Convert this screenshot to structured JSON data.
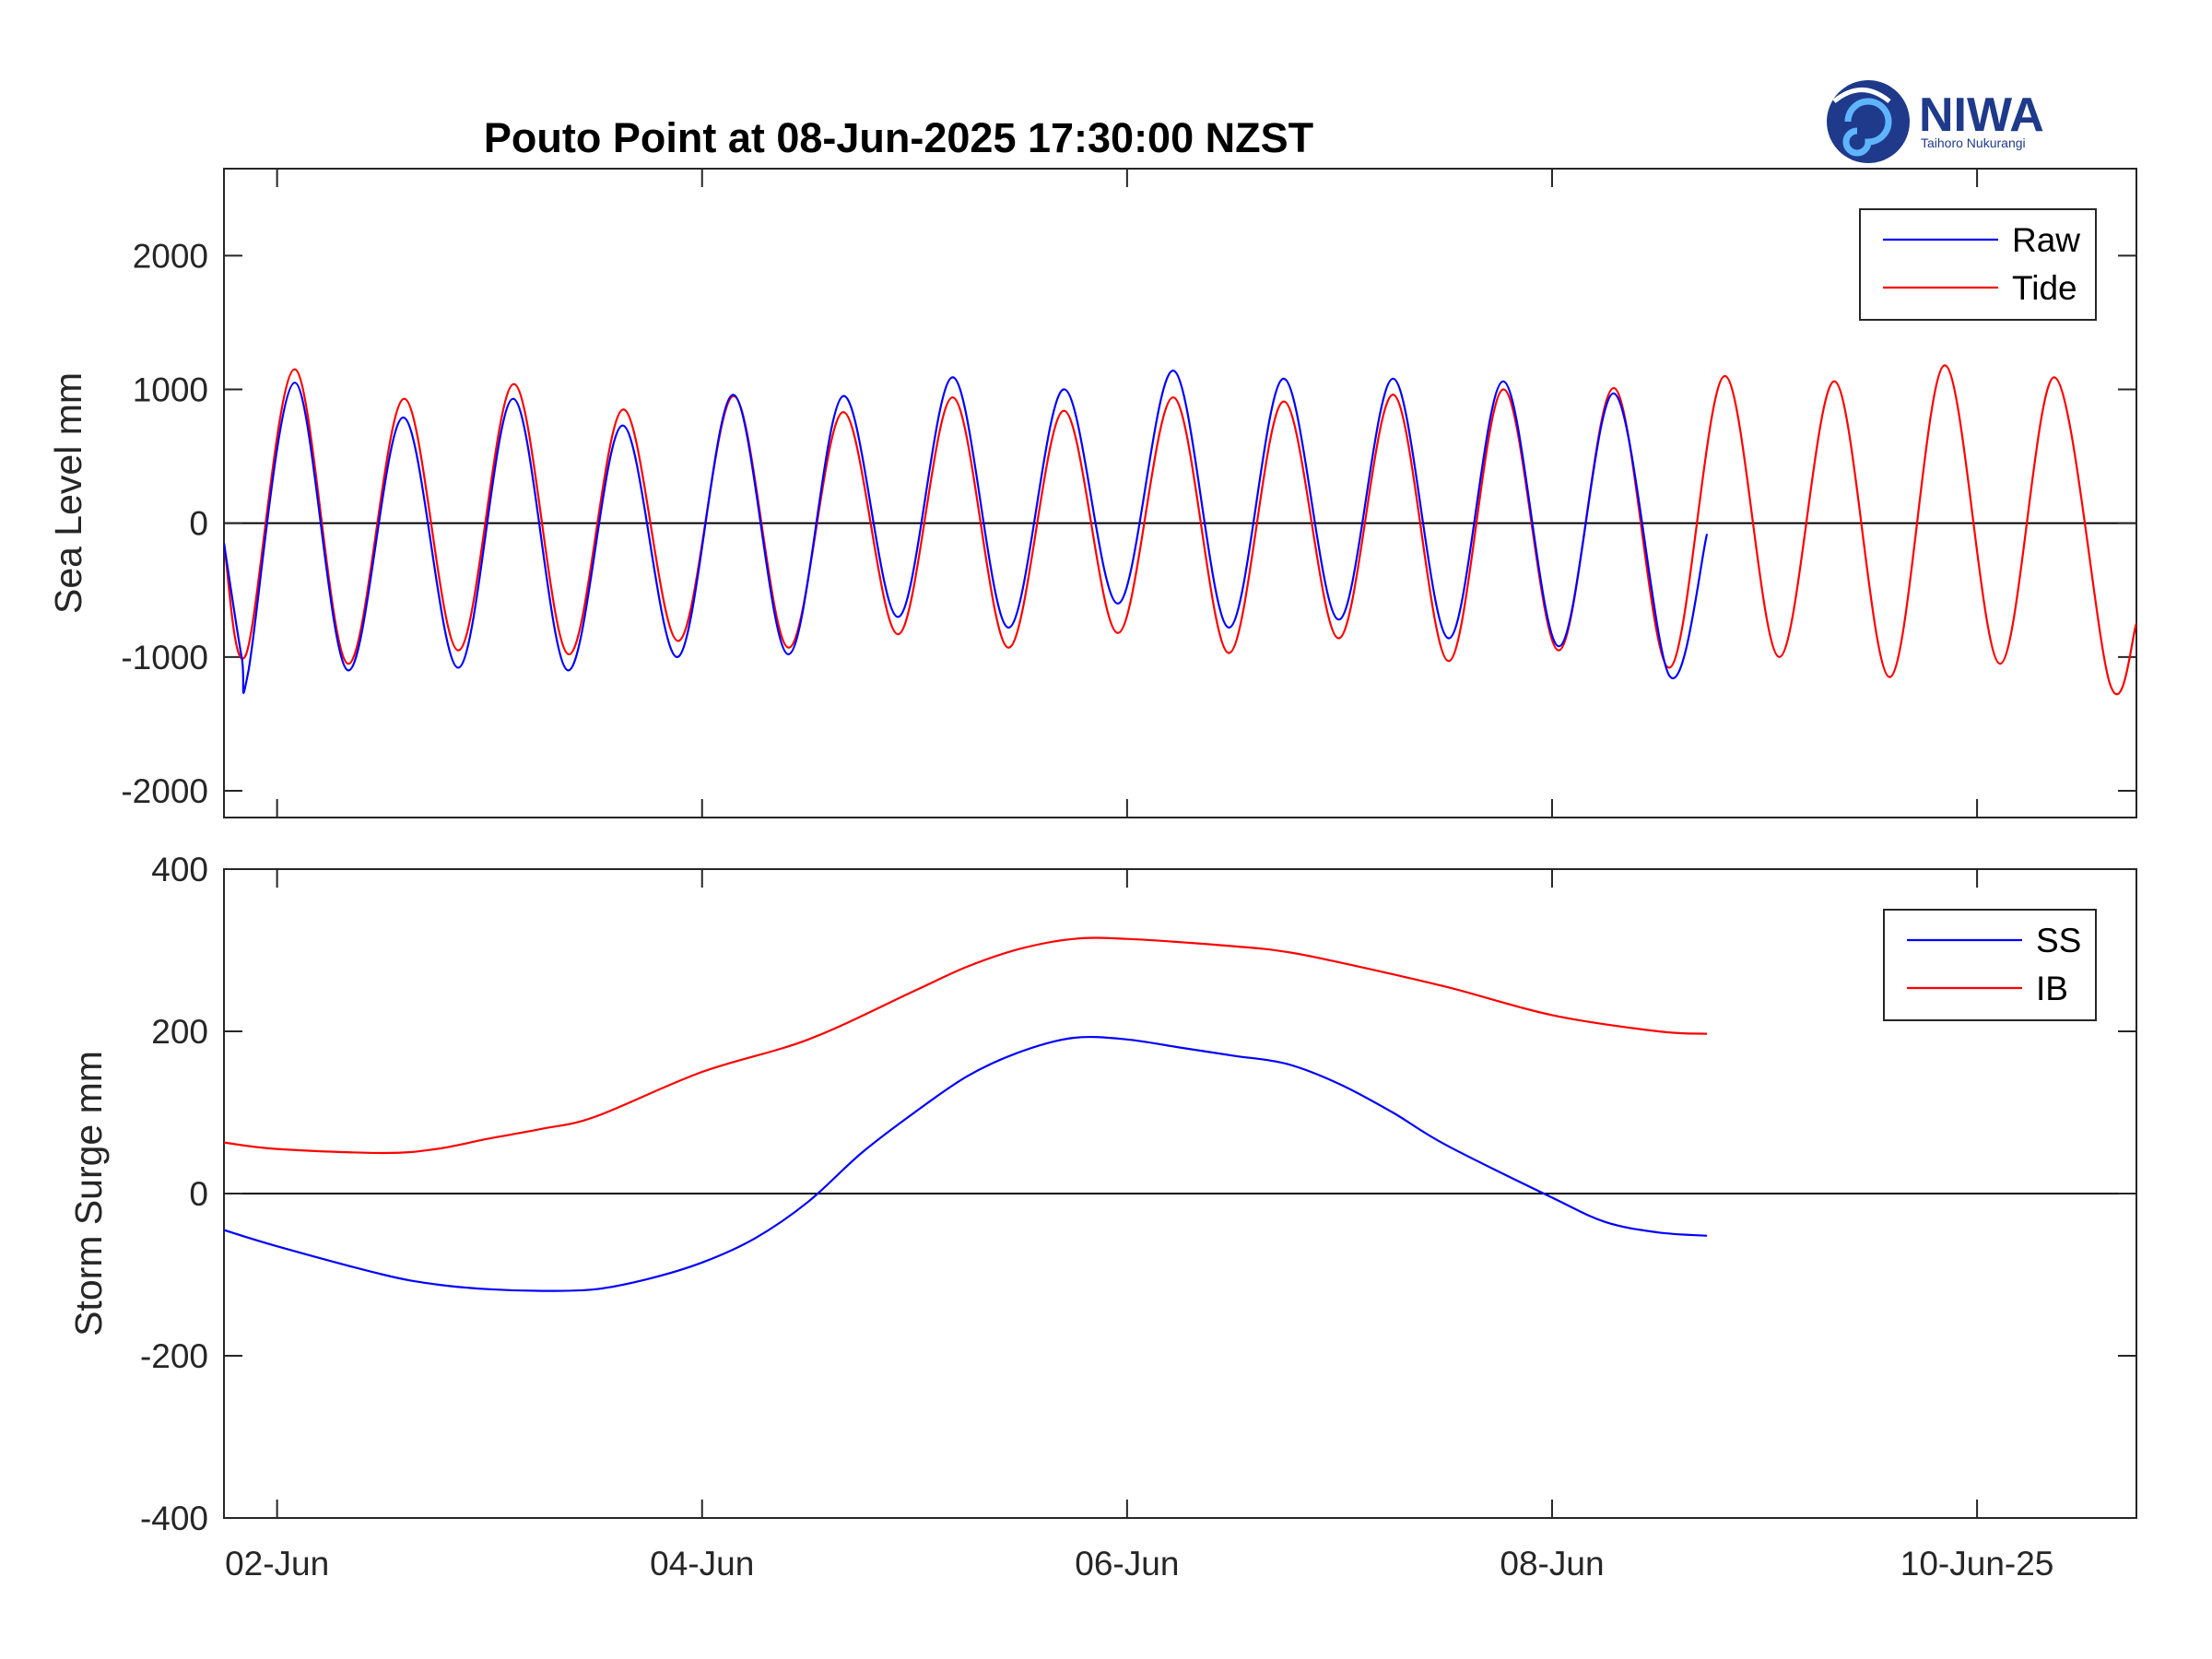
{
  "title": "Pouto Point at 08-Jun-2025 17:30:00 NZST",
  "logo": {
    "name": "NIWA",
    "subtitle": "Taihoro Nukurangi"
  },
  "colors": {
    "raw": "#0000ff",
    "tide": "#ff0000",
    "ss": "#0000ff",
    "ib": "#ff0000",
    "axis": "#262626",
    "zero": "#000000"
  },
  "x_axis": {
    "start": "2025-06-01T18:00",
    "end": "2025-06-10T18:00",
    "ticks": [
      {
        "date": "2025-06-02T00:00",
        "label": "02-Jun"
      },
      {
        "date": "2025-06-04T00:00",
        "label": "04-Jun"
      },
      {
        "date": "2025-06-06T00:00",
        "label": "06-Jun"
      },
      {
        "date": "2025-06-08T00:00",
        "label": "08-Jun"
      },
      {
        "date": "2025-06-10T00:00",
        "label": "10-Jun-25"
      }
    ]
  },
  "chart_data": [
    {
      "type": "line",
      "ylabel": "Sea Level mm",
      "ylim": [
        -2200,
        2650
      ],
      "yticks": [
        "2000",
        "1000",
        "0",
        "-1000",
        "-2000"
      ],
      "yticks_values": [
        2000,
        1000,
        0,
        -1000,
        -2000
      ],
      "legend": "top-right",
      "zero_line": true,
      "series": [
        {
          "name": "Raw",
          "points": [
            [
              "2025-06-01T18:00",
              -150
            ],
            [
              "2025-06-01T20:00",
              -1000
            ],
            [
              "2025-06-01T20:45",
              -1110
            ],
            [
              "2025-06-02T02:00",
              1050
            ],
            [
              "2025-06-02T08:00",
              -1100
            ],
            [
              "2025-06-02T14:15",
              790
            ],
            [
              "2025-06-02T20:30",
              -1080
            ],
            [
              "2025-06-03T02:40",
              930
            ],
            [
              "2025-06-03T08:50",
              -1100
            ],
            [
              "2025-06-03T15:00",
              730
            ],
            [
              "2025-06-03T21:15",
              -1000
            ],
            [
              "2025-06-04T03:30",
              960
            ],
            [
              "2025-06-04T09:45",
              -980
            ],
            [
              "2025-06-04T15:55",
              950
            ],
            [
              "2025-06-04T22:10",
              -700
            ],
            [
              "2025-06-05T04:20",
              1090
            ],
            [
              "2025-06-05T10:35",
              -780
            ],
            [
              "2025-06-05T16:50",
              1000
            ],
            [
              "2025-06-05T23:00",
              -600
            ],
            [
              "2025-06-06T05:15",
              1140
            ],
            [
              "2025-06-06T11:30",
              -780
            ],
            [
              "2025-06-06T17:40",
              1080
            ],
            [
              "2025-06-06T23:55",
              -720
            ],
            [
              "2025-06-07T06:05",
              1080
            ],
            [
              "2025-06-07T12:20",
              -860
            ],
            [
              "2025-06-07T18:30",
              1060
            ],
            [
              "2025-06-08T00:45",
              -920
            ],
            [
              "2025-06-08T07:00",
              970
            ],
            [
              "2025-06-08T13:15",
              -1140
            ],
            [
              "2025-06-08T17:30",
              -80
            ]
          ]
        },
        {
          "name": "Tide",
          "points": [
            [
              "2025-06-01T18:00",
              -150
            ],
            [
              "2025-06-01T20:30",
              -980
            ],
            [
              "2025-06-02T02:00",
              1150
            ],
            [
              "2025-06-02T08:00",
              -1050
            ],
            [
              "2025-06-02T14:20",
              930
            ],
            [
              "2025-06-02T20:30",
              -950
            ],
            [
              "2025-06-03T02:45",
              1040
            ],
            [
              "2025-06-03T08:55",
              -980
            ],
            [
              "2025-06-03T15:05",
              850
            ],
            [
              "2025-06-03T21:20",
              -880
            ],
            [
              "2025-06-04T03:35",
              950
            ],
            [
              "2025-06-04T09:45",
              -930
            ],
            [
              "2025-06-04T15:55",
              830
            ],
            [
              "2025-06-04T22:10",
              -830
            ],
            [
              "2025-06-05T04:20",
              940
            ],
            [
              "2025-06-05T10:35",
              -930
            ],
            [
              "2025-06-05T16:50",
              840
            ],
            [
              "2025-06-05T23:00",
              -820
            ],
            [
              "2025-06-06T05:15",
              940
            ],
            [
              "2025-06-06T11:30",
              -970
            ],
            [
              "2025-06-06T17:40",
              910
            ],
            [
              "2025-06-06T23:55",
              -860
            ],
            [
              "2025-06-07T06:05",
              960
            ],
            [
              "2025-06-07T12:20",
              -1030
            ],
            [
              "2025-06-07T18:30",
              1000
            ],
            [
              "2025-06-08T00:45",
              -950
            ],
            [
              "2025-06-08T07:00",
              1010
            ],
            [
              "2025-06-08T13:15",
              -1080
            ],
            [
              "2025-06-08T19:30",
              1100
            ],
            [
              "2025-06-09T01:40",
              -1000
            ],
            [
              "2025-06-09T07:55",
              1060
            ],
            [
              "2025-06-09T14:10",
              -1150
            ],
            [
              "2025-06-09T20:20",
              1180
            ],
            [
              "2025-06-10T02:35",
              -1050
            ],
            [
              "2025-06-10T08:45",
              1090
            ],
            [
              "2025-06-10T15:00",
              -1200
            ],
            [
              "2025-06-10T18:00",
              -750
            ]
          ]
        }
      ]
    },
    {
      "type": "line",
      "ylabel": "Storm Surge mm",
      "ylim": [
        -400,
        400
      ],
      "yticks": [
        "400",
        "200",
        "0",
        "-200",
        "-400"
      ],
      "yticks_values": [
        400,
        200,
        0,
        -200,
        -400
      ],
      "legend": "top-right",
      "zero_line": true,
      "series": [
        {
          "name": "SS",
          "points": [
            [
              "2025-06-01T18:00",
              -45
            ],
            [
              "2025-06-02T00:00",
              -65
            ],
            [
              "2025-06-02T12:00",
              -100
            ],
            [
              "2025-06-02T18:00",
              -112
            ],
            [
              "2025-06-03T00:00",
              -118
            ],
            [
              "2025-06-03T06:00",
              -120
            ],
            [
              "2025-06-03T12:00",
              -118
            ],
            [
              "2025-06-03T18:00",
              -105
            ],
            [
              "2025-06-04T00:00",
              -85
            ],
            [
              "2025-06-04T06:00",
              -55
            ],
            [
              "2025-06-04T12:00",
              -10
            ],
            [
              "2025-06-04T18:00",
              50
            ],
            [
              "2025-06-05T00:00",
              100
            ],
            [
              "2025-06-05T06:00",
              145
            ],
            [
              "2025-06-05T12:00",
              175
            ],
            [
              "2025-06-05T18:00",
              192
            ],
            [
              "2025-06-06T00:00",
              190
            ],
            [
              "2025-06-06T06:00",
              180
            ],
            [
              "2025-06-06T12:00",
              170
            ],
            [
              "2025-06-06T18:00",
              160
            ],
            [
              "2025-06-07T00:00",
              135
            ],
            [
              "2025-06-07T06:00",
              100
            ],
            [
              "2025-06-07T12:00",
              60
            ],
            [
              "2025-06-08T00:00",
              -5
            ],
            [
              "2025-06-08T06:00",
              -35
            ],
            [
              "2025-06-08T12:00",
              -48
            ],
            [
              "2025-06-08T17:30",
              -52
            ]
          ]
        },
        {
          "name": "IB",
          "points": [
            [
              "2025-06-01T18:00",
              63
            ],
            [
              "2025-06-02T00:00",
              55
            ],
            [
              "2025-06-02T12:00",
              50
            ],
            [
              "2025-06-02T18:00",
              55
            ],
            [
              "2025-06-03T00:00",
              68
            ],
            [
              "2025-06-03T06:00",
              80
            ],
            [
              "2025-06-03T12:00",
              95
            ],
            [
              "2025-06-04T00:00",
              150
            ],
            [
              "2025-06-04T12:00",
              190
            ],
            [
              "2025-06-05T00:00",
              250
            ],
            [
              "2025-06-05T06:00",
              280
            ],
            [
              "2025-06-05T12:00",
              302
            ],
            [
              "2025-06-05T18:00",
              314
            ],
            [
              "2025-06-06T00:00",
              314
            ],
            [
              "2025-06-06T12:00",
              305
            ],
            [
              "2025-06-06T18:00",
              298
            ],
            [
              "2025-06-07T00:00",
              285
            ],
            [
              "2025-06-07T12:00",
              255
            ],
            [
              "2025-06-08T00:00",
              220
            ],
            [
              "2025-06-08T12:00",
              200
            ],
            [
              "2025-06-08T17:30",
              197
            ]
          ]
        }
      ]
    }
  ]
}
